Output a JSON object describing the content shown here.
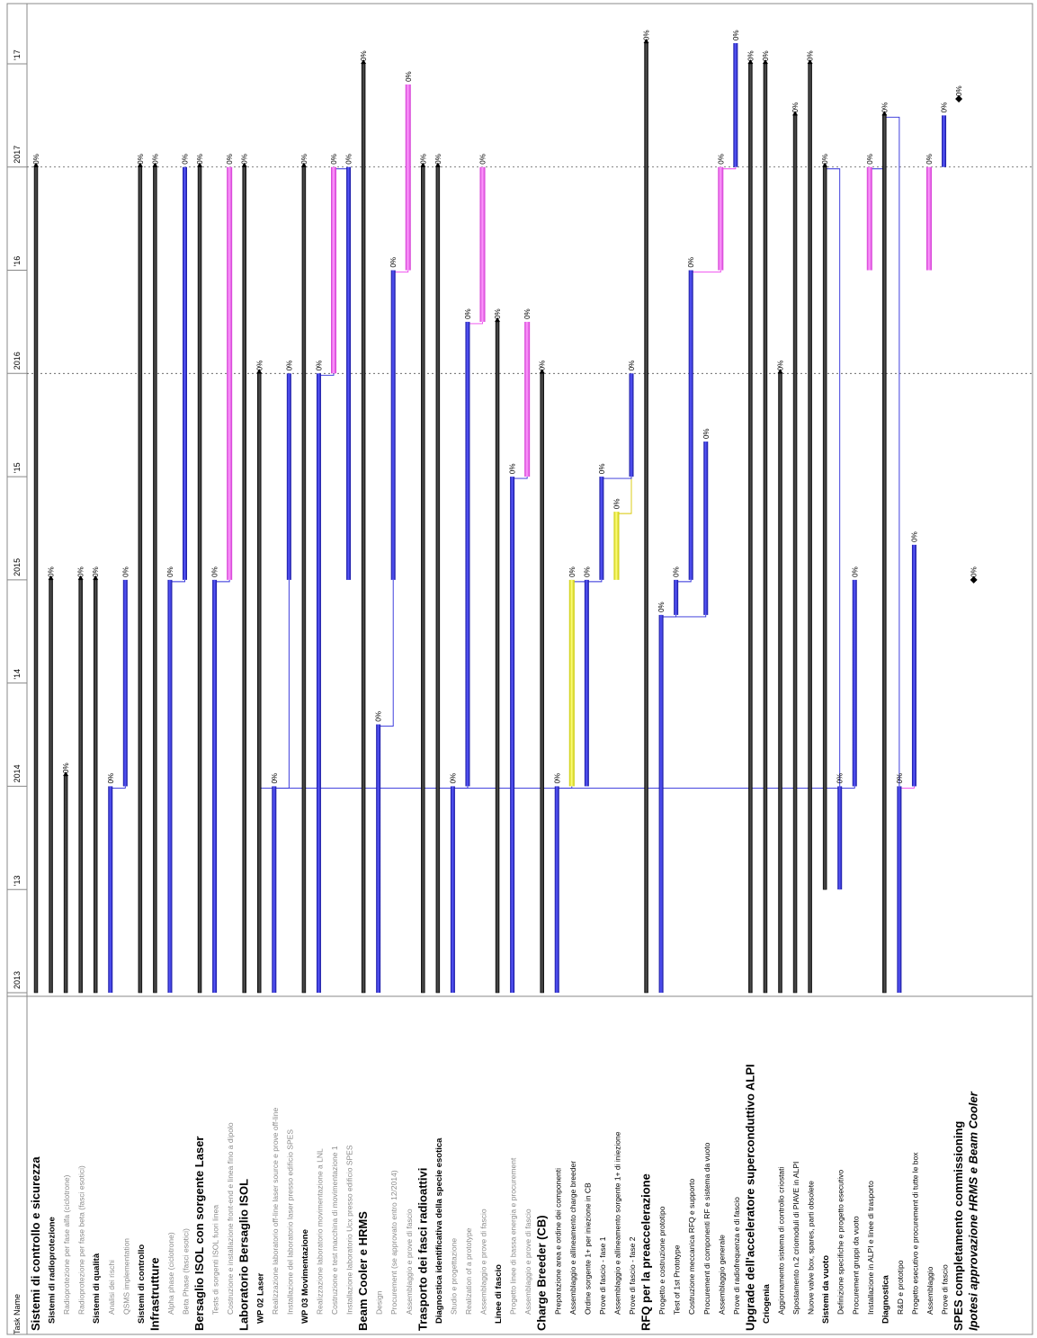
{
  "chart_data": {
    "type": "gantt",
    "orientation": "rotated-90",
    "column_header": "Task Name",
    "timeline": {
      "start": 2013.0,
      "end": 2017.6,
      "ticks": [
        {
          "t": 2013.0,
          "label": "2013"
        },
        {
          "t": 2013.5,
          "label": "'13"
        },
        {
          "t": 2014.0,
          "label": "2014"
        },
        {
          "t": 2014.5,
          "label": "'14"
        },
        {
          "t": 2015.0,
          "label": "2015"
        },
        {
          "t": 2015.5,
          "label": "'15"
        },
        {
          "t": 2016.0,
          "label": "2016"
        },
        {
          "t": 2016.5,
          "label": "'16"
        },
        {
          "t": 2017.0,
          "label": "2017"
        },
        {
          "t": 2017.5,
          "label": "'17"
        }
      ],
      "dashed_year_lines": [
        2016.0,
        2017.0
      ]
    },
    "colors": {
      "summary": "#333333",
      "task": "#2b2bd9",
      "critical": "#ff66ff",
      "other": "#f4f442",
      "link_blue": "#2b2bd9",
      "link_pink": "#ee44ee",
      "link_yellow": "#d8c800",
      "milestone": "#000000"
    },
    "tasks": [
      {
        "name": "Sistemi di controllo e sicurezza",
        "level": 0,
        "kind": "summary",
        "start": 2013.0,
        "end": 2017.0,
        "pct": "0%"
      },
      {
        "name": "Sistemi di radioprotezione",
        "level": 1,
        "kind": "summary",
        "start": 2013.0,
        "end": 2015.0,
        "pct": "0%"
      },
      {
        "name": "Radioprotezione per fase alfa (ciclotrone)",
        "level": 2,
        "kind": "summary",
        "start": 2013.0,
        "end": 2014.05,
        "pct": "0%",
        "grey": true
      },
      {
        "name": "Radioprotezione per fase beta (fasci esotici)",
        "level": 2,
        "kind": "summary",
        "start": 2013.0,
        "end": 2015.0,
        "pct": "0%",
        "grey": true
      },
      {
        "name": "Sistemi di qualità",
        "level": 1,
        "kind": "summary",
        "start": 2013.0,
        "end": 2015.0,
        "pct": "0%"
      },
      {
        "name": "Analisi dei rischi",
        "level": 2,
        "kind": "task",
        "start": 2013.0,
        "end": 2014.0,
        "pct": "0%",
        "grey": true
      },
      {
        "name": "QSMS implementation",
        "level": 2,
        "kind": "task",
        "start": 2014.0,
        "end": 2015.0,
        "pct": "0%",
        "grey": true
      },
      {
        "name": "Sistemi di controllo",
        "level": 1,
        "kind": "summary",
        "start": 2013.0,
        "end": 2017.0,
        "pct": "0%"
      },
      {
        "name": "Infrastrutture",
        "level": 0,
        "kind": "summary",
        "start": 2013.0,
        "end": 2017.0,
        "pct": "0%"
      },
      {
        "name": "Alpha phase (ciclotrone)",
        "level": 2,
        "kind": "task",
        "start": 2013.0,
        "end": 2015.0,
        "pct": "0%",
        "grey": true
      },
      {
        "name": "Beta Phase (fasci esotici)",
        "level": 2,
        "kind": "task",
        "start": 2015.0,
        "end": 2017.0,
        "pct": "0%",
        "grey": true
      },
      {
        "name": "Bersaglio ISOL con sorgente Laser",
        "level": 0,
        "kind": "summary",
        "start": 2013.0,
        "end": 2017.0,
        "pct": "0%"
      },
      {
        "name": "Tests di sorgenti ISOL fuori linea",
        "level": 2,
        "kind": "task",
        "start": 2013.0,
        "end": 2015.0,
        "pct": "0%",
        "grey": true
      },
      {
        "name": "Costruzione e installazione front-end e linea fino a dipolo",
        "level": 2,
        "kind": "critical",
        "start": 2015.0,
        "end": 2017.0,
        "pct": "0%",
        "grey": true
      },
      {
        "name": "Laboratorio Bersaglio ISOL",
        "level": 0,
        "kind": "summary",
        "start": 2013.0,
        "end": 2017.0,
        "pct": "0%"
      },
      {
        "name": "WP 02 Laser",
        "level": 1,
        "kind": "summary",
        "start": 2013.0,
        "end": 2016.0,
        "pct": "0%"
      },
      {
        "name": "Realizzazione laboratorio off-line laser source e prove off-line",
        "level": 2,
        "kind": "task",
        "start": 2013.0,
        "end": 2014.0,
        "pct": "0%",
        "grey": true
      },
      {
        "name": "Installazione del laboratorio laser presso edificio SPES",
        "level": 2,
        "kind": "task",
        "start": 2015.0,
        "end": 2016.0,
        "pct": "0%",
        "grey": true
      },
      {
        "name": "WP 03 Movimentazione",
        "level": 1,
        "kind": "summary",
        "start": 2013.0,
        "end": 2017.0,
        "pct": "0%"
      },
      {
        "name": "Realizzazione laboratorio movimentazione a LNL",
        "level": 2,
        "kind": "task",
        "start": 2013.0,
        "end": 2016.0,
        "pct": "0%",
        "grey": true
      },
      {
        "name": "Costruzione e test macchina di movimentazione 1",
        "level": 2,
        "kind": "critical",
        "start": 2016.0,
        "end": 2017.0,
        "pct": "0%",
        "grey": true
      },
      {
        "name": "Installazione laboratorio Ucx presso edificio SPES",
        "level": 2,
        "kind": "task",
        "start": 2015.0,
        "end": 2017.0,
        "pct": "0%",
        "grey": true
      },
      {
        "name": "Beam Cooler e HRMS",
        "level": 0,
        "kind": "summary",
        "start": 2013.0,
        "end": 2017.5,
        "pct": "0%"
      },
      {
        "name": "Design",
        "level": 2,
        "kind": "task",
        "start": 2013.0,
        "end": 2014.3,
        "pct": "0%",
        "grey": true
      },
      {
        "name": "Procurement (se approvato entro 12/2014)",
        "level": 2,
        "kind": "task",
        "start": 2015.0,
        "end": 2016.5,
        "pct": "0%",
        "grey": true
      },
      {
        "name": "Assemblaggio e prove di fascio",
        "level": 2,
        "kind": "critical",
        "start": 2016.5,
        "end": 2017.4,
        "pct": "0%",
        "grey": true
      },
      {
        "name": "Trasporto dei fasci radioattivi",
        "level": 0,
        "kind": "summary",
        "start": 2013.0,
        "end": 2017.0,
        "pct": "0%"
      },
      {
        "name": "Diagnostica identificativa della specie esotica",
        "level": 1,
        "kind": "summary",
        "start": 2013.0,
        "end": 2017.0,
        "pct": "0%"
      },
      {
        "name": "Studio e progettazione",
        "level": 2,
        "kind": "task",
        "start": 2013.0,
        "end": 2014.0,
        "pct": "0%",
        "grey": true
      },
      {
        "name": "Realization of a prototype",
        "level": 2,
        "kind": "task",
        "start": 2014.0,
        "end": 2016.25,
        "pct": "0%",
        "grey": true
      },
      {
        "name": "Assemblaggio e prove di fascio",
        "level": 2,
        "kind": "critical",
        "start": 2016.25,
        "end": 2017.0,
        "pct": "0%",
        "grey": true
      },
      {
        "name": "Linee di fascio",
        "level": 1,
        "kind": "summary",
        "start": 2013.0,
        "end": 2016.25,
        "pct": "0%"
      },
      {
        "name": "Progetto linee di bassa energia e procurement",
        "level": 2,
        "kind": "task",
        "start": 2013.0,
        "end": 2015.5,
        "pct": "0%",
        "grey": true
      },
      {
        "name": "Assemblaggio e prove di fascio",
        "level": 2,
        "kind": "critical",
        "start": 2015.5,
        "end": 2016.25,
        "pct": "0%",
        "grey": true
      },
      {
        "name": "Charge Breeder (CB)",
        "level": 0,
        "kind": "summary",
        "start": 2013.0,
        "end": 2016.0,
        "pct": "0%"
      },
      {
        "name": "Preparazione area e ordine dei componenti",
        "level": 2,
        "kind": "task",
        "start": 2013.0,
        "end": 2014.0,
        "pct": "0%"
      },
      {
        "name": "Assemblaggio e allineamento charge breeder",
        "level": 2,
        "kind": "other",
        "start": 2014.0,
        "end": 2015.0,
        "pct": "0%"
      },
      {
        "name": "Ordine sorgente 1+ per iniezione in CB",
        "level": 2,
        "kind": "task",
        "start": 2014.0,
        "end": 2015.0,
        "pct": "0%"
      },
      {
        "name": "Prove di fascio - fase 1",
        "level": 2,
        "kind": "task",
        "start": 2015.0,
        "end": 2015.5,
        "pct": "0%"
      },
      {
        "name": "Assemblaggio e allineamento sorgente 1+ di iniezione",
        "level": 2,
        "kind": "other",
        "start": 2015.0,
        "end": 2015.33,
        "pct": "0%"
      },
      {
        "name": "Prove di fascio - fase 2",
        "level": 2,
        "kind": "task",
        "start": 2015.5,
        "end": 2016.0,
        "pct": "0%"
      },
      {
        "name": "RFQ per la preaccelerazione",
        "level": 0,
        "kind": "summary",
        "start": 2013.0,
        "end": 2017.6,
        "pct": "0%"
      },
      {
        "name": "Progetto e costruzione prototipo",
        "level": 2,
        "kind": "task",
        "start": 2013.0,
        "end": 2014.83,
        "pct": "0%"
      },
      {
        "name": "Test of 1st Prototype",
        "level": 2,
        "kind": "task",
        "start": 2014.83,
        "end": 2015.0,
        "pct": "0%"
      },
      {
        "name": "Costruzione meccanica RFQ e supporto",
        "level": 2,
        "kind": "task",
        "start": 2015.0,
        "end": 2016.5,
        "pct": "0%"
      },
      {
        "name": "Procurement di componenti RF e sistema da vuoto",
        "level": 2,
        "kind": "task",
        "start": 2014.83,
        "end": 2015.67,
        "pct": "0%"
      },
      {
        "name": "Assemblaggio generale",
        "level": 2,
        "kind": "critical",
        "start": 2016.5,
        "end": 2017.0,
        "pct": "0%"
      },
      {
        "name": "Prove di radiofrequenza e di fascio",
        "level": 2,
        "kind": "task",
        "start": 2017.0,
        "end": 2017.6,
        "pct": "0%"
      },
      {
        "name": "Upgrade dell'acceleratore superconduttivo ALPI",
        "level": 0,
        "kind": "summary",
        "start": 2013.0,
        "end": 2017.5,
        "pct": "0%"
      },
      {
        "name": "Criogenia",
        "level": 1,
        "kind": "summary",
        "start": 2013.0,
        "end": 2017.5,
        "pct": "0%"
      },
      {
        "name": "Aggiornamento sistema di controllo criostati",
        "level": 2,
        "kind": "summary",
        "start": 2013.0,
        "end": 2016.0,
        "pct": "0%"
      },
      {
        "name": "Spostamento n.2 criomoduli di PIAVE in ALPI",
        "level": 2,
        "kind": "summary",
        "start": 2013.0,
        "end": 2017.25,
        "pct": "0%"
      },
      {
        "name": "Nuove valve box, spares, parti obsolete",
        "level": 2,
        "kind": "summary",
        "start": 2013.0,
        "end": 2017.5,
        "pct": "0%"
      },
      {
        "name": "Sistemi da vuoto",
        "level": 1,
        "kind": "summary",
        "start": 2013.5,
        "end": 2017.0,
        "pct": "0%"
      },
      {
        "name": "Definizione specifiche e progetto esecutivo",
        "level": 2,
        "kind": "task",
        "start": 2013.5,
        "end": 2014.0,
        "pct": "0%"
      },
      {
        "name": "Procurement gruppi da vuoto",
        "level": 2,
        "kind": "task",
        "start": 2014.0,
        "end": 2015.0,
        "pct": "0%"
      },
      {
        "name": "Installazione in ALPI e linee di trasporto",
        "level": 2,
        "kind": "critical",
        "start": 2016.5,
        "end": 2017.0,
        "pct": "0%"
      },
      {
        "name": "Diagnostica",
        "level": 1,
        "kind": "summary",
        "start": 2013.0,
        "end": 2017.25,
        "pct": "0%"
      },
      {
        "name": "R&D e prototipo",
        "level": 2,
        "kind": "task",
        "start": 2013.0,
        "end": 2014.0,
        "pct": "0%"
      },
      {
        "name": "Progetto esecutivo e procurement di tutte le box",
        "level": 2,
        "kind": "task",
        "start": 2014.0,
        "end": 2015.17,
        "pct": "0%"
      },
      {
        "name": "Assemblaggio",
        "level": 2,
        "kind": "critical",
        "start": 2016.5,
        "end": 2017.0,
        "pct": "0%"
      },
      {
        "name": "Prove di fascio",
        "level": 2,
        "kind": "task",
        "start": 2017.0,
        "end": 2017.25,
        "pct": "0%"
      },
      {
        "name": "SPES completamento commissioning",
        "level": 0,
        "kind": "milestone",
        "start": 2017.33,
        "end": 2017.33,
        "pct": "0%"
      },
      {
        "name": "Ipotesi approvazione HRMS e Beam Cooler",
        "level": 0,
        "kind": "milestone",
        "start": 2015.0,
        "end": 2015.0,
        "pct": "0%",
        "italic": true
      }
    ]
  }
}
